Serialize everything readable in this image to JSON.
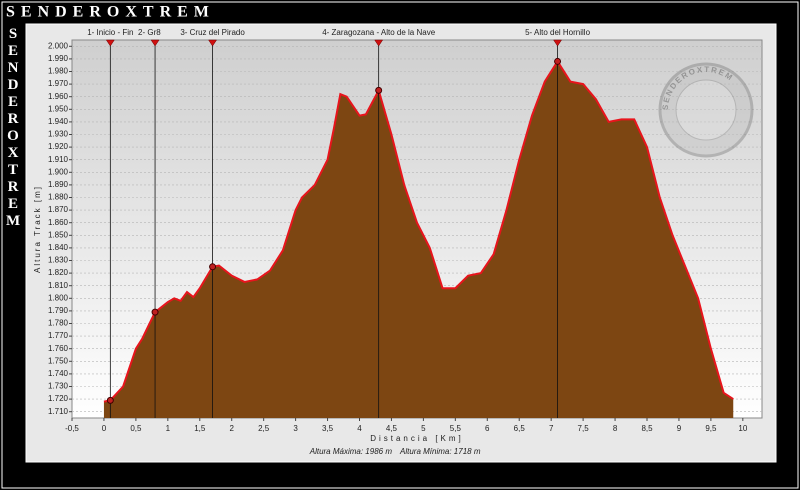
{
  "chart_data": {
    "type": "area",
    "title": "SENDEROXTREM",
    "side_title": "SENDEROXTREM",
    "logo_text": "SENDEROXTREM",
    "xlabel": "Distancia [Km]",
    "ylabel": "Altura Track [m]",
    "footer": [
      "Altura Máxima: 1986 m",
      "Altura Mínima: 1718 m"
    ],
    "x": [
      0.0,
      0.1,
      0.3,
      0.5,
      0.6,
      0.8,
      1.0,
      1.1,
      1.2,
      1.3,
      1.4,
      1.5,
      1.7,
      1.8,
      2.0,
      2.2,
      2.4,
      2.6,
      2.8,
      3.0,
      3.1,
      3.3,
      3.5,
      3.6,
      3.7,
      3.8,
      4.0,
      4.1,
      4.3,
      4.5,
      4.7,
      4.9,
      5.1,
      5.3,
      5.5,
      5.7,
      5.9,
      6.1,
      6.3,
      6.5,
      6.7,
      6.9,
      7.1,
      7.3,
      7.5,
      7.7,
      7.9,
      8.1,
      8.3,
      8.5,
      8.7,
      8.9,
      9.1,
      9.3,
      9.5,
      9.7,
      9.85
    ],
    "series": [
      {
        "color": "#7d4612",
        "line_color": "#e8141c",
        "values": [
          1718,
          1719,
          1730,
          1760,
          1768,
          1789,
          1797,
          1800,
          1798,
          1805,
          1801,
          1808,
          1825,
          1826,
          1818,
          1813,
          1815,
          1822,
          1838,
          1870,
          1880,
          1890,
          1910,
          1935,
          1962,
          1960,
          1945,
          1946,
          1965,
          1930,
          1890,
          1860,
          1840,
          1808,
          1808,
          1818,
          1820,
          1835,
          1870,
          1910,
          1945,
          1972,
          1988,
          1972,
          1970,
          1958,
          1940,
          1942,
          1942,
          1920,
          1880,
          1850,
          1825,
          1800,
          1760,
          1725,
          1720
        ]
      }
    ],
    "waypoints": [
      {
        "label": "1- Inicio - Fin",
        "x": 0.1,
        "y": 1719
      },
      {
        "label": "2- Gr8",
        "x": 0.8,
        "y": 1789
      },
      {
        "label": "3- Cruz del Pirado",
        "x": 1.7,
        "y": 1825
      },
      {
        "label": "4- Zaragozana - Alto de la Nave",
        "x": 4.3,
        "y": 1965
      },
      {
        "label": "5- Alto del Hornillo",
        "x": 7.1,
        "y": 1988
      }
    ],
    "xlim": [
      -0.5,
      10.3
    ],
    "ylim": [
      1705,
      2005
    ],
    "xticks": [
      {
        "value": -0.5,
        "label": "-0,5"
      },
      0,
      {
        "value": 0.5,
        "label": "0,5"
      },
      1,
      {
        "value": 1.5,
        "label": "1,5"
      },
      2,
      {
        "value": 2.5,
        "label": "2,5"
      },
      3,
      {
        "value": 3.5,
        "label": "3,5"
      },
      4,
      {
        "value": 4.5,
        "label": "4,5"
      },
      5,
      {
        "value": 5.5,
        "label": "5,5"
      },
      6,
      {
        "value": 6.5,
        "label": "6,5"
      },
      7,
      {
        "value": 7.5,
        "label": "7,5"
      },
      8,
      {
        "value": 8.5,
        "label": "8,5"
      },
      9,
      {
        "value": 9.5,
        "label": "9,5"
      },
      10
    ],
    "yticks": [
      {
        "value": 1710,
        "label": "1.710"
      },
      {
        "value": 1720,
        "label": "1.720"
      },
      {
        "value": 1730,
        "label": "1.730"
      },
      {
        "value": 1740,
        "label": "1.740"
      },
      {
        "value": 1750,
        "label": "1.750"
      },
      {
        "value": 1760,
        "label": "1.760"
      },
      {
        "value": 1770,
        "label": "1.770"
      },
      {
        "value": 1780,
        "label": "1.780"
      },
      {
        "value": 1790,
        "label": "1.790"
      },
      {
        "value": 1800,
        "label": "1.800"
      },
      {
        "value": 1810,
        "label": "1.810"
      },
      {
        "value": 1820,
        "label": "1.820"
      },
      {
        "value": 1830,
        "label": "1.830"
      },
      {
        "value": 1840,
        "label": "1.840"
      },
      {
        "value": 1850,
        "label": "1.850"
      },
      {
        "value": 1860,
        "label": "1.860"
      },
      {
        "value": 1870,
        "label": "1.870"
      },
      {
        "value": 1880,
        "label": "1.880"
      },
      {
        "value": 1890,
        "label": "1.890"
      },
      {
        "value": 1900,
        "label": "1.900"
      },
      {
        "value": 1910,
        "label": "1.910"
      },
      {
        "value": 1920,
        "label": "1.920"
      },
      {
        "value": 1930,
        "label": "1.930"
      },
      {
        "value": 1940,
        "label": "1.940"
      },
      {
        "value": 1950,
        "label": "1.950"
      },
      {
        "value": 1960,
        "label": "1.960"
      },
      {
        "value": 1970,
        "label": "1.970"
      },
      {
        "value": 1980,
        "label": "1.980"
      },
      {
        "value": 1990,
        "label": "1.990"
      },
      {
        "value": 2000,
        "label": "2.000"
      }
    ],
    "grid": true
  }
}
